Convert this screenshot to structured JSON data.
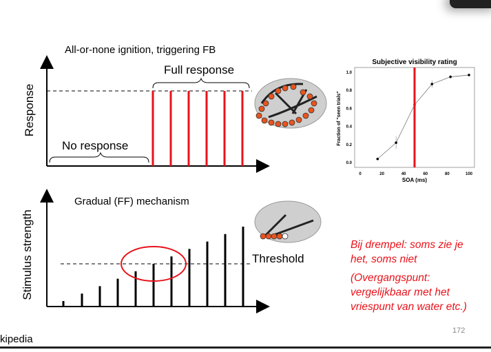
{
  "top_diagram": {
    "title": "All-or-none ignition, triggering FB",
    "y_label": "Response",
    "no_response_label": "No response",
    "full_response_label": "Full response"
  },
  "bottom_diagram": {
    "title": "Gradual (FF) mechanism",
    "y_label": "Stimulus strength",
    "threshold_label": "Threshold"
  },
  "notes": {
    "line1": "Bij drempel: soms zie je",
    "line2": "het, soms niet",
    "line3": "(Overgangspunt:",
    "line4": "vergelijkbaar met het",
    "line5": "vriespunt van water etc.)"
  },
  "colors": {
    "accent_red": "#e8121a",
    "brain_node": "#e8541e"
  },
  "footer": {
    "source": "kipedia",
    "page_number": "172"
  },
  "chart_data": {
    "type": "line",
    "title": "Subjective visibility rating",
    "xlabel": "SOA  (ms)",
    "ylabel": "Fraction of \"seen trials\"",
    "xlim": [
      0,
      100
    ],
    "ylim": [
      0,
      1.0
    ],
    "x_ticks": [
      "0",
      "20",
      "40",
      "60",
      "80",
      "100"
    ],
    "y_ticks": [
      "0.0",
      "0.2",
      "0.4",
      "0.6",
      "0.8",
      "1.0"
    ],
    "x": [
      16,
      33,
      50,
      66,
      83,
      100
    ],
    "y": [
      0.04,
      0.22,
      0.64,
      0.87,
      0.95,
      0.97
    ],
    "error": [
      0.01,
      0.07,
      0.08,
      0.04,
      0.02,
      0.01
    ],
    "vertical_line_x": 50,
    "vertical_line_color": "#e8121a",
    "grid": false
  }
}
